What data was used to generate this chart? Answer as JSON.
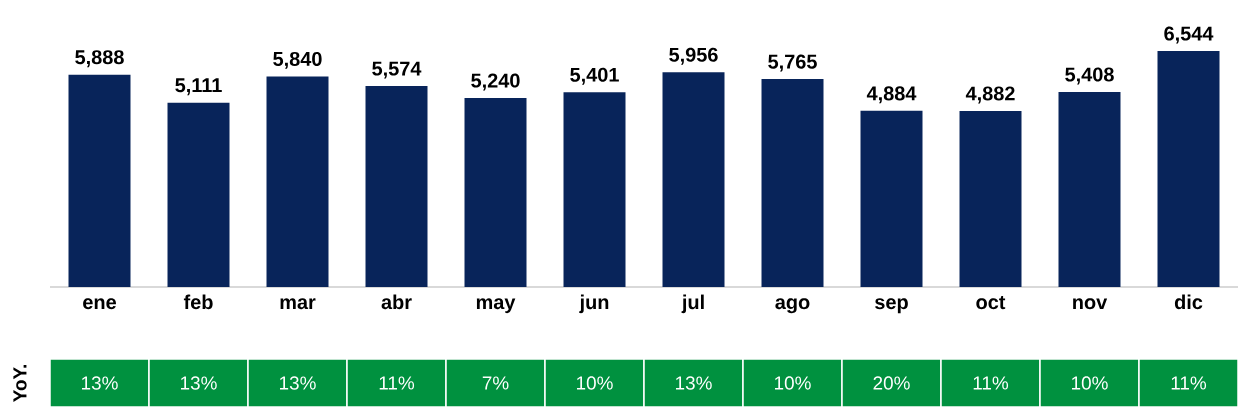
{
  "chart_data": {
    "type": "bar",
    "categories": [
      "ene",
      "feb",
      "mar",
      "abr",
      "may",
      "jun",
      "jul",
      "ago",
      "sep",
      "oct",
      "nov",
      "dic"
    ],
    "values": [
      5888,
      5111,
      5840,
      5574,
      5240,
      5401,
      5956,
      5765,
      4884,
      4882,
      5408,
      6544
    ],
    "value_labels": [
      "5,888",
      "5,111",
      "5,840",
      "5,574",
      "5,240",
      "5,401",
      "5,956",
      "5,765",
      "4,884",
      "4,882",
      "5,408",
      "6,544"
    ],
    "color": "#08245a",
    "tick_labels": "x",
    "annotations": [
      "YoY.",
      "13%",
      "13%",
      "13%",
      "11%",
      "7%",
      "10%",
      "13%",
      "10%",
      "20%",
      "11%",
      "10%",
      "11%"
    ]
  }
}
